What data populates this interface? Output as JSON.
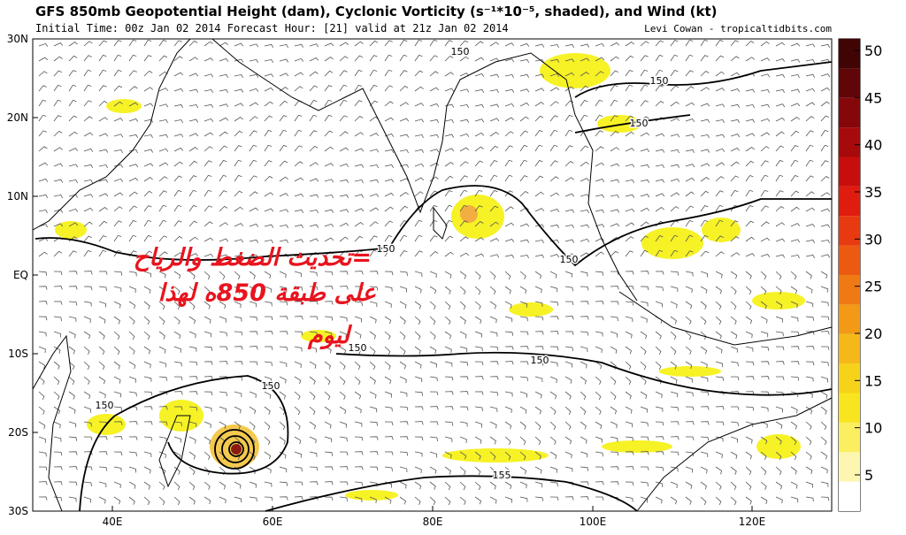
{
  "header": {
    "title": "GFS 850mb Geopotential Height (dam), Cyclonic Vorticity (s⁻¹*10⁻⁵, shaded), and Wind (kt)",
    "subtitle": "Initial Time: 00z Jan 02 2014 Forecast Hour: [21] valid at 21z Jan 02 2014",
    "credit": "Levi Cowan - tropicaltidbits.com"
  },
  "map": {
    "lat_labels": [
      "30N",
      "20N",
      "10N",
      "EQ",
      "10S",
      "20S",
      "30S"
    ],
    "lon_labels": [
      "40E",
      "60E",
      "80E",
      "100E",
      "120E"
    ],
    "contour_labels": [
      "150",
      "150",
      "150",
      "150",
      "150",
      "150",
      "150",
      "150",
      "150",
      "155"
    ]
  },
  "colorbar": {
    "ticks": [
      50,
      45,
      40,
      35,
      30,
      25,
      20,
      15,
      10,
      5
    ]
  },
  "overlay": {
    "lines": [
      "=تحديث الضغط والرياح",
      "على طبقة 850ه لهذا",
      "ليوم"
    ]
  }
}
